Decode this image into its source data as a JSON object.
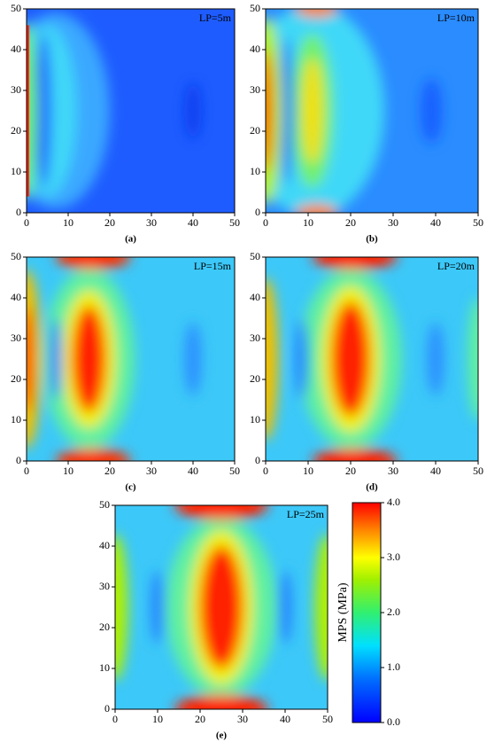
{
  "chart_data": [
    {
      "type": "contour",
      "label": "LP=5m",
      "caption": "(a)",
      "xlim": [
        0,
        50
      ],
      "ylim": [
        0,
        50
      ],
      "xticks": [
        0,
        10,
        20,
        30,
        40,
        50
      ],
      "yticks": [
        0,
        10,
        20,
        30,
        40,
        50
      ]
    },
    {
      "type": "contour",
      "label": "LP=10m",
      "caption": "(b)",
      "xlim": [
        0,
        50
      ],
      "ylim": [
        0,
        50
      ],
      "xticks": [
        0,
        10,
        20,
        30,
        40,
        50
      ],
      "yticks": [
        0,
        10,
        20,
        30,
        40,
        50
      ]
    },
    {
      "type": "contour",
      "label": "LP=15m",
      "caption": "(c)",
      "xlim": [
        0,
        50
      ],
      "ylim": [
        0,
        50
      ],
      "xticks": [
        0,
        10,
        20,
        30,
        40,
        50
      ],
      "yticks": [
        0,
        10,
        20,
        30,
        40,
        50
      ]
    },
    {
      "type": "contour",
      "label": "LP=20m",
      "caption": "(d)",
      "xlim": [
        0,
        50
      ],
      "ylim": [
        0,
        50
      ],
      "xticks": [
        0,
        10,
        20,
        30,
        40,
        50
      ],
      "yticks": [
        0,
        10,
        20,
        30,
        40,
        50
      ]
    },
    {
      "type": "contour",
      "label": "LP=25m",
      "caption": "(e)",
      "xlim": [
        0,
        50
      ],
      "ylim": [
        0,
        50
      ],
      "xticks": [
        0,
        10,
        20,
        30,
        40,
        50
      ],
      "yticks": [
        0,
        10,
        20,
        30,
        40,
        50
      ]
    },
    {
      "type": "colorbar",
      "label": "MPS (MPa)",
      "ylim": [
        0,
        4
      ],
      "yticks": [
        {
          "value": 0,
          "label": "0.0"
        },
        {
          "value": 1,
          "label": "1.0"
        },
        {
          "value": 2,
          "label": "2.0"
        },
        {
          "value": 3,
          "label": "3.0"
        },
        {
          "value": 4,
          "label": "4.0"
        }
      ]
    }
  ]
}
